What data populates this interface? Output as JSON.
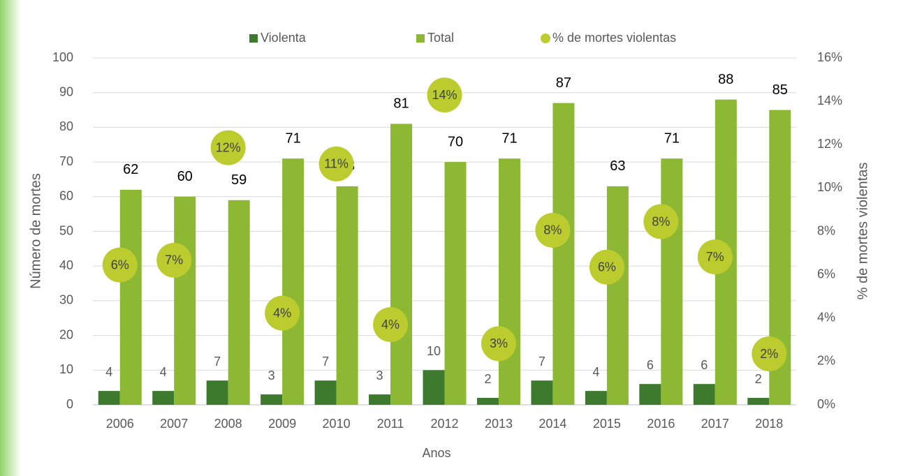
{
  "chart_data": {
    "type": "bar",
    "xlabel": "Anos",
    "ylabel": "Número de mortes",
    "y2label": "% de mortes violentas",
    "categories": [
      "2006",
      "2007",
      "2008",
      "2009",
      "2010",
      "2011",
      "2012",
      "2013",
      "2014",
      "2015",
      "2016",
      "2017",
      "2018"
    ],
    "series": [
      {
        "name": "Violenta",
        "type": "bar",
        "color": "#3e7a2e",
        "values": [
          4,
          4,
          7,
          3,
          7,
          3,
          10,
          2,
          7,
          4,
          6,
          6,
          2
        ]
      },
      {
        "name": "Total",
        "type": "bar",
        "color": "#8db833",
        "values": [
          62,
          60,
          59,
          71,
          63,
          81,
          70,
          71,
          87,
          63,
          71,
          88,
          85
        ]
      },
      {
        "name": "% de mortes violentas",
        "type": "scatter",
        "axis": "y2",
        "color": "#bccc2e",
        "values": [
          6.45,
          6.67,
          11.86,
          4.23,
          11.11,
          3.7,
          14.29,
          2.82,
          8.05,
          6.35,
          8.45,
          6.82,
          2.35
        ],
        "value_labels": [
          "6%",
          "7%",
          "12%",
          "4%",
          "11%",
          "4%",
          "14%",
          "3%",
          "8%",
          "6%",
          "8%",
          "7%",
          "2%"
        ]
      }
    ],
    "ylim": [
      0,
      100
    ],
    "yticks": [
      0,
      10,
      20,
      30,
      40,
      50,
      60,
      70,
      80,
      90,
      100
    ],
    "y2lim": [
      0,
      16
    ],
    "y2ticks": [
      {
        "value": 0,
        "label": "0%"
      },
      {
        "value": 2,
        "label": "2%"
      },
      {
        "value": 4,
        "label": "4%"
      },
      {
        "value": 6,
        "label": "6%"
      },
      {
        "value": 8,
        "label": "8%"
      },
      {
        "value": 10,
        "label": "10%"
      },
      {
        "value": 12,
        "label": "12%"
      },
      {
        "value": 14,
        "label": "14%"
      },
      {
        "value": 16,
        "label": "16%"
      }
    ],
    "grid": true,
    "legend": "top"
  }
}
